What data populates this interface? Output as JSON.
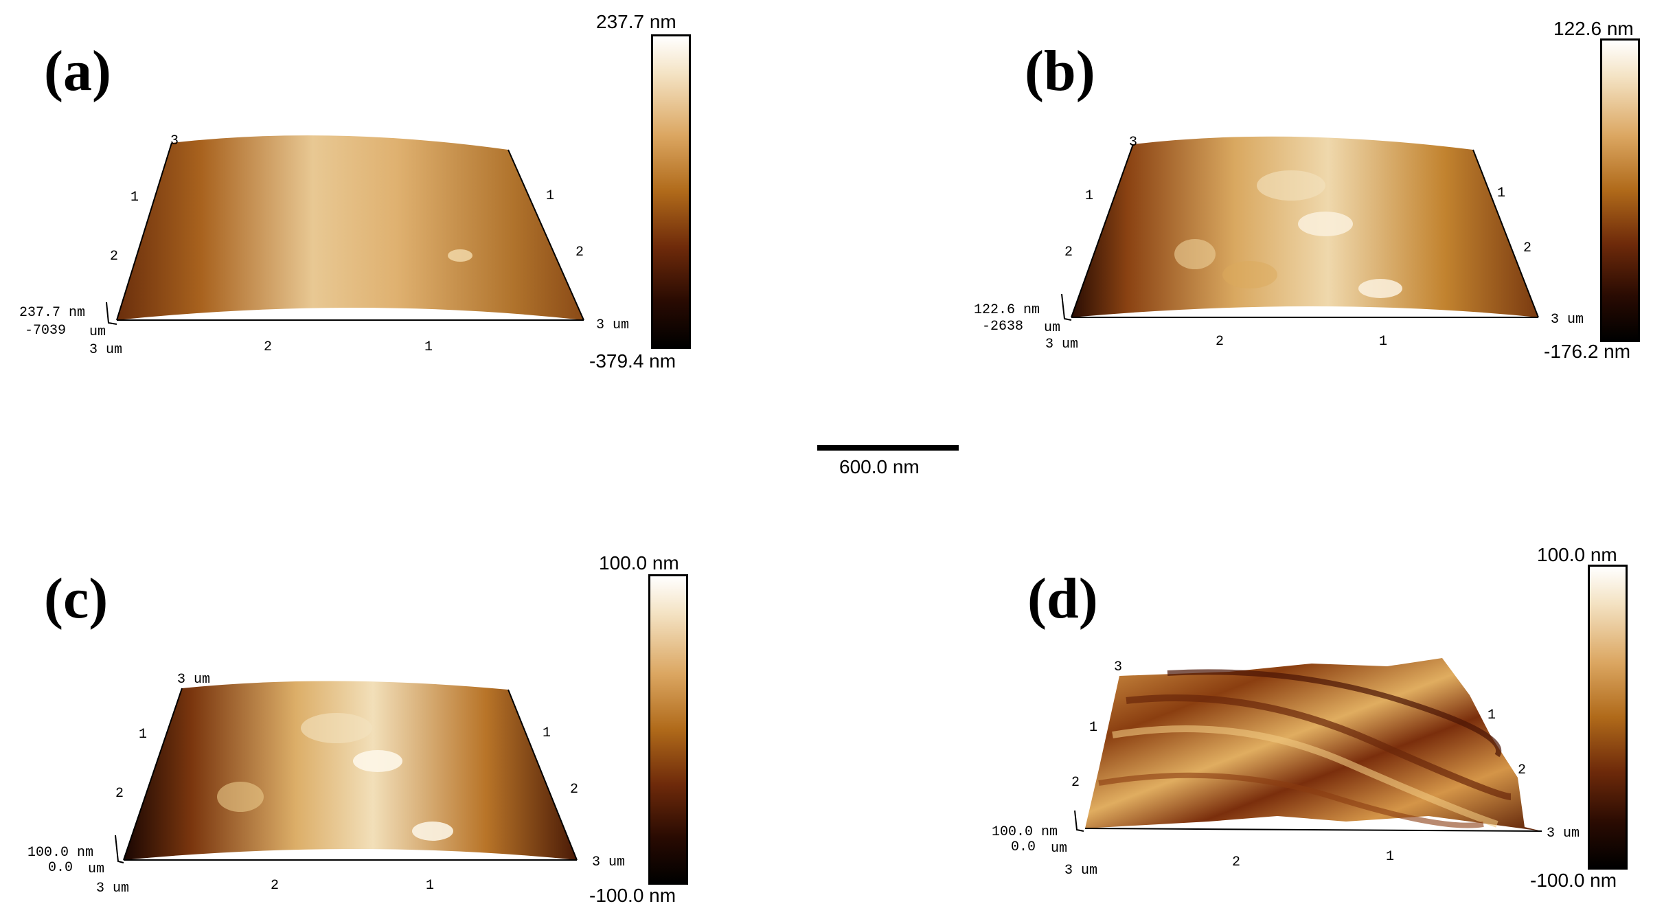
{
  "scale_bar": {
    "label": "600.0 nm"
  },
  "panels": [
    {
      "label": "(a)",
      "z_top": "237.7 nm",
      "colorbar_max": "237.7 nm",
      "colorbar_min": "-379.4 nm",
      "corner_lower": "-7039",
      "corner_um": "um",
      "axis_left": [
        "3",
        "1",
        "2"
      ],
      "axis_right": [
        "1",
        "2",
        "3 um"
      ],
      "axis_bottom": [
        "3 um",
        "2",
        "1"
      ]
    },
    {
      "label": "(b)",
      "z_top": "122.6 nm",
      "colorbar_max": "122.6 nm",
      "colorbar_min": "-176.2 nm",
      "corner_lower": "-2638",
      "corner_um": "um",
      "axis_left": [
        "3",
        "1",
        "2"
      ],
      "axis_right": [
        "1",
        "2",
        "3 um"
      ],
      "axis_bottom": [
        "3 um",
        "2",
        "1"
      ]
    },
    {
      "label": "(c)",
      "z_top": "100.0 nm",
      "colorbar_max": "100.0 nm",
      "colorbar_min": "-100.0 nm",
      "corner_lower": "0.0",
      "corner_um": "um",
      "axis_left": [
        "3 um",
        "1",
        "2"
      ],
      "axis_right": [
        "1",
        "2",
        "3 um"
      ],
      "axis_bottom": [
        "3 um",
        "2",
        "1"
      ]
    },
    {
      "label": "(d)",
      "z_top": "100.0 nm",
      "colorbar_max": "100.0 nm",
      "colorbar_min": "-100.0 nm",
      "corner_lower": "0.0",
      "corner_um": "um",
      "axis_left": [
        "3",
        "1",
        "2"
      ],
      "axis_right": [
        "1",
        "2",
        "3 um"
      ],
      "axis_bottom": [
        "3 um",
        "2",
        "1"
      ]
    }
  ]
}
